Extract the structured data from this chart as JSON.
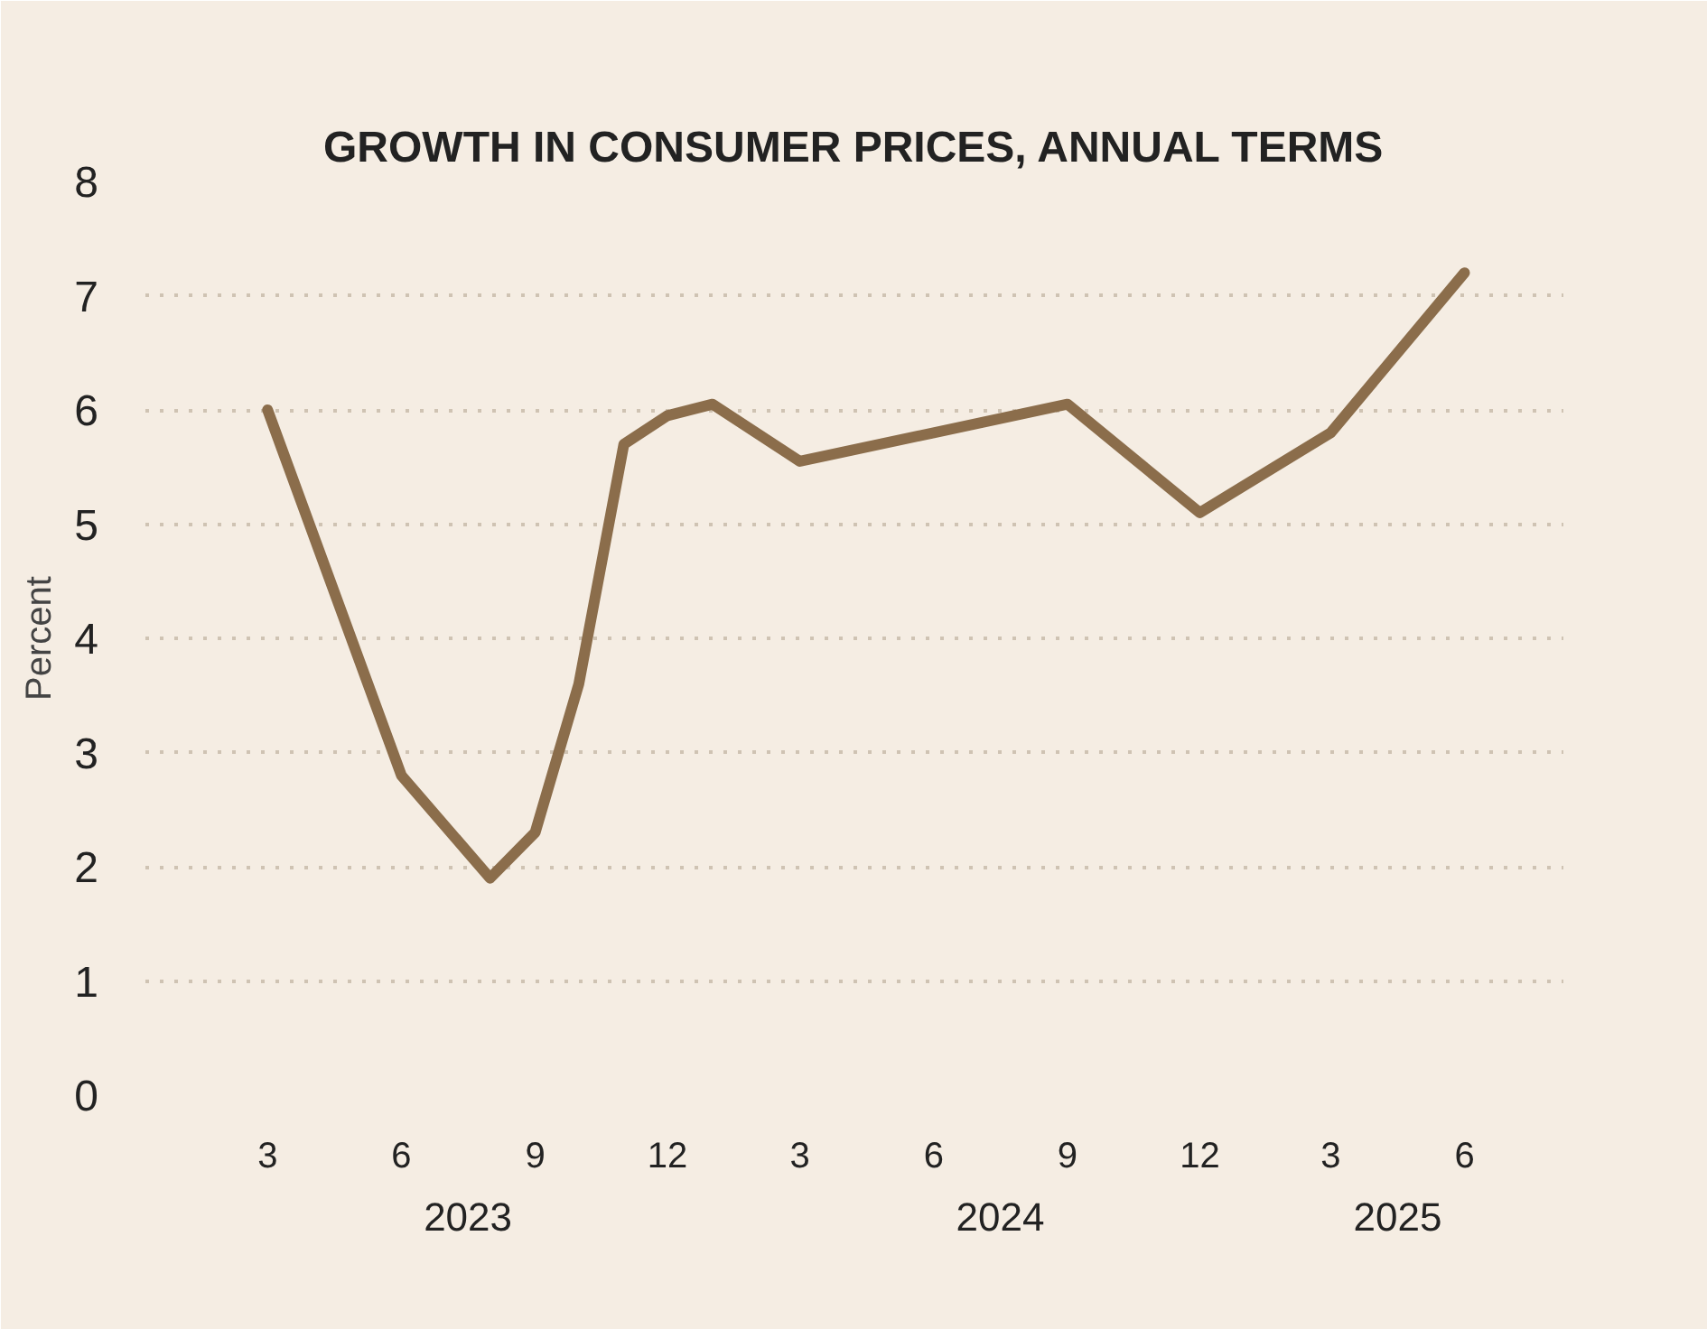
{
  "chart_data": {
    "type": "line",
    "title": "GROWTH IN CONSUMER PRICES, ANNUAL TERMS",
    "ylabel": "Percent",
    "x": [
      "2023-03",
      "2023-06",
      "2023-08",
      "2023-09",
      "2023-10",
      "2023-11",
      "2023-12",
      "2024-01",
      "2024-03",
      "2024-06",
      "2024-09",
      "2024-12",
      "2025-03",
      "2025-06"
    ],
    "series": [
      {
        "color": "#8b6d4b",
        "values": [
          6.0,
          2.8,
          1.9,
          2.3,
          3.6,
          5.7,
          5.95,
          6.05,
          5.55,
          5.8,
          6.05,
          5.1,
          5.8,
          7.2
        ]
      }
    ],
    "xlim": [
      "2022-12-07",
      "2025-08-08"
    ],
    "xticks": [
      {
        "value": "2023-03",
        "label": "3"
      },
      {
        "value": "2023-06",
        "label": "6"
      },
      {
        "value": "2023-09",
        "label": "9"
      },
      {
        "value": "2023-12",
        "label": "12"
      },
      {
        "value": "2024-03",
        "label": "3"
      },
      {
        "value": "2024-06",
        "label": "6"
      },
      {
        "value": "2024-09",
        "label": "9"
      },
      {
        "value": "2024-12",
        "label": "12"
      },
      {
        "value": "2025-03",
        "label": "3"
      },
      {
        "value": "2025-06",
        "label": "6"
      }
    ],
    "ylim": [
      0,
      8
    ],
    "yticks": [
      0,
      1,
      2,
      3,
      4,
      5,
      6,
      7,
      8
    ],
    "annotations": [
      "2023",
      "2024",
      "2025"
    ],
    "grid": "y",
    "marker": "none",
    "line_style": "solid"
  }
}
